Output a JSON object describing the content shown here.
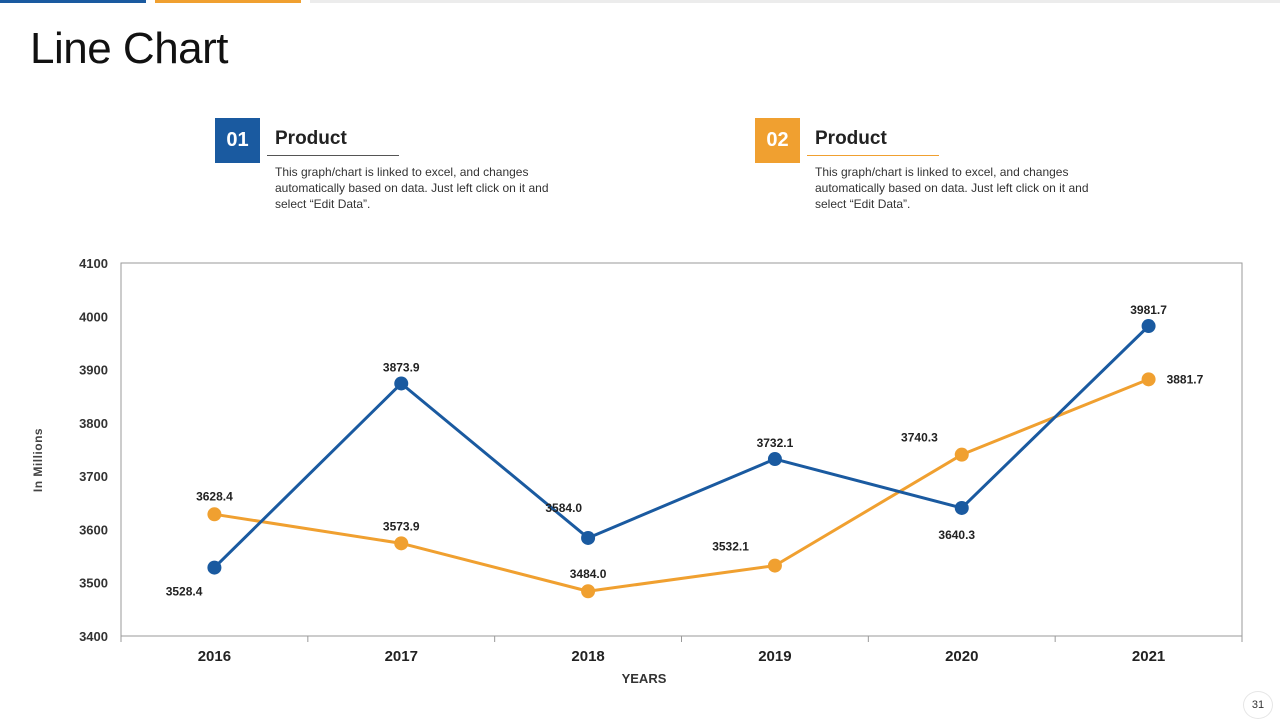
{
  "slide": {
    "title": "Line Chart",
    "page_number": "31"
  },
  "cards": [
    {
      "number": "01",
      "heading": "Product",
      "description": "This graph/chart is linked to excel, and changes automatically based on data. Just left click on it and select “Edit Data”.",
      "color": "#1a5aa0"
    },
    {
      "number": "02",
      "heading": "Product",
      "description": "This graph/chart is linked to excel, and changes automatically based on data. Just left click on it and select “Edit Data”.",
      "color": "#f0a030"
    }
  ],
  "chart_data": {
    "type": "line",
    "x": [
      "2016",
      "2017",
      "2018",
      "2019",
      "2020",
      "2021"
    ],
    "series": [
      {
        "values": [
          3528.4,
          3873.9,
          3584.0,
          3732.1,
          3640.3,
          3981.7
        ],
        "labels": [
          "3528.4",
          "3873.9",
          "3584.0",
          "3732.1",
          "3640.3",
          "3981.7"
        ],
        "color": "#1a5aa0"
      },
      {
        "values": [
          3628.4,
          3573.9,
          3484.0,
          3532.1,
          3740.3,
          3881.7
        ],
        "labels": [
          "3628.4",
          "3573.9",
          "3484.0",
          "3532.1",
          "3740.3",
          "3881.7"
        ],
        "color": "#f0a030"
      }
    ],
    "xlabel": "YEARS",
    "ylabel": "In Millions",
    "ylim": [
      3400,
      4100
    ],
    "yticks": [
      "3400",
      "3500",
      "3600",
      "3700",
      "3800",
      "3900",
      "4000",
      "4100"
    ],
    "grid": false,
    "legend": "none"
  }
}
